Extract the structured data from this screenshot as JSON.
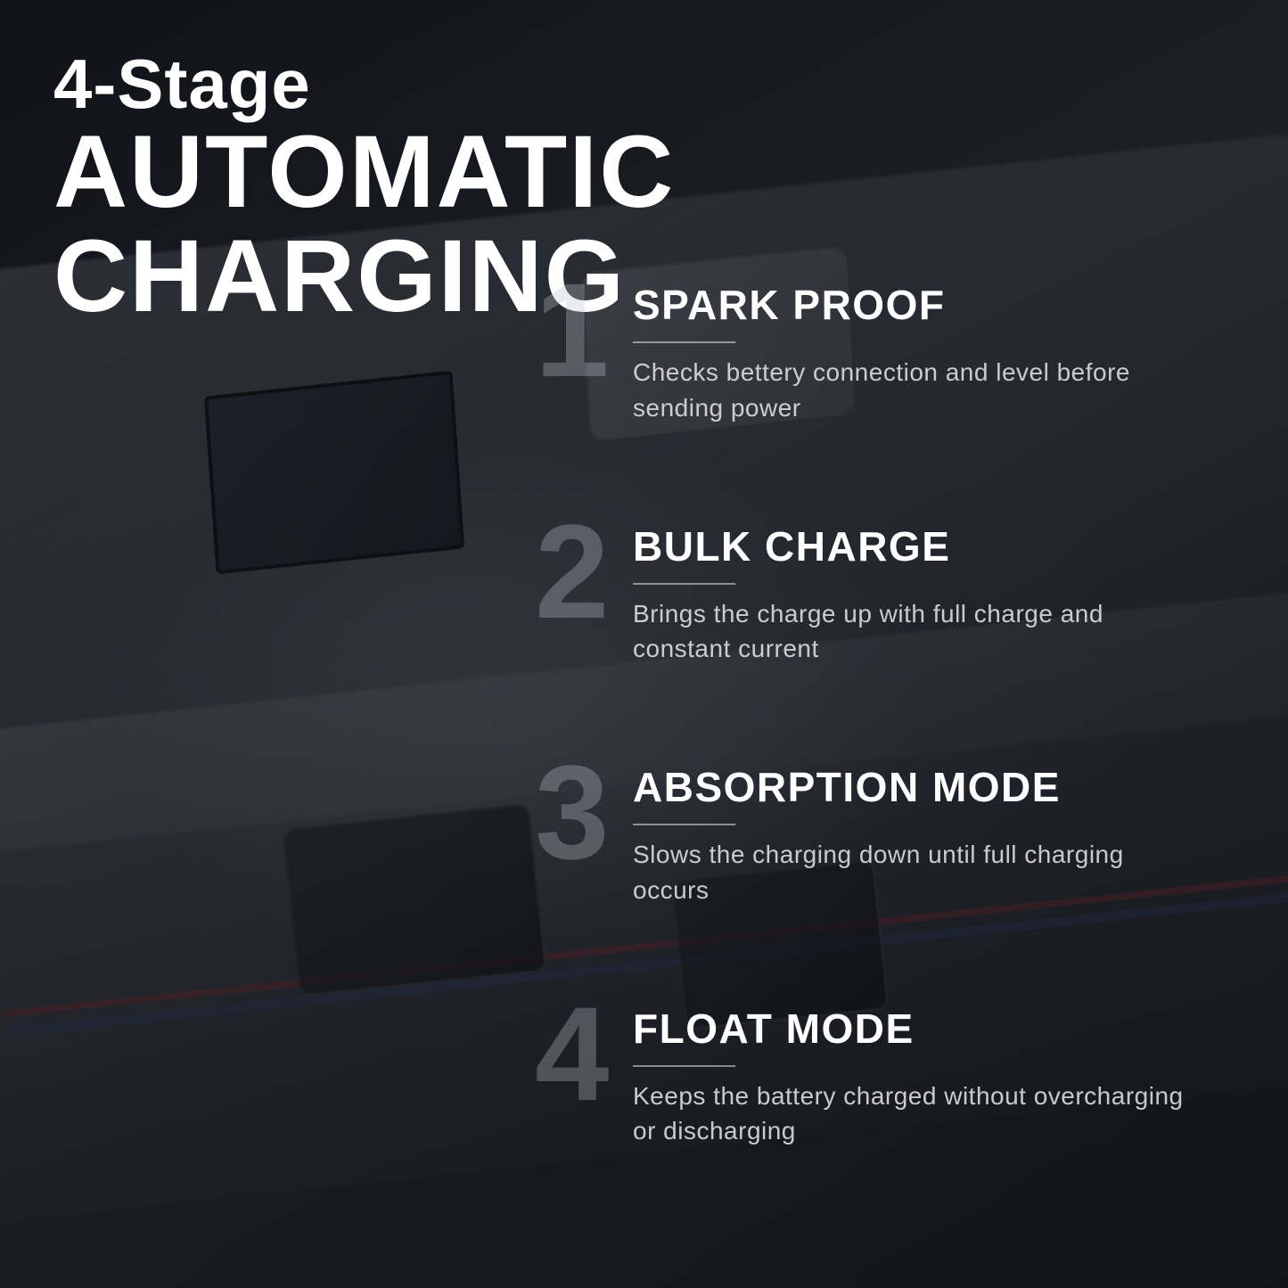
{
  "header": {
    "line1": "4-Stage",
    "line2": "AUTOMATIC CHARGING"
  },
  "stages": [
    {
      "num": "1",
      "title": "SPARK PROOF",
      "desc": "Checks bettery connection and level before sending power"
    },
    {
      "num": "2",
      "title": "BULK CHARGE",
      "desc": "Brings the charge up with full charge and constant current"
    },
    {
      "num": "3",
      "title": "ABSORPTION MODE",
      "desc": "Slows the charging down until full charging occurs"
    },
    {
      "num": "4",
      "title": "FLOAT MODE",
      "desc": "Keeps the battery charged without overcharging or discharging"
    }
  ],
  "style": {
    "text_color": "#ffffff",
    "ghost_num_color": "rgba(190,195,205,0.32)",
    "desc_color": "rgba(225,225,230,0.88)",
    "divider_color": "rgba(230,230,235,0.55)",
    "header_small_fontsize": 78,
    "header_large_fontsize": 115,
    "stage_num_fontsize": 150,
    "stage_title_fontsize": 46,
    "stage_desc_fontsize": 28,
    "background_tones": [
      "#1a1d22",
      "#252831",
      "#2d3138",
      "#1f2228",
      "#151719"
    ],
    "stripe_red": "rgba(140,50,55,0.5)",
    "stripe_blue": "rgba(55,70,110,0.5)"
  }
}
